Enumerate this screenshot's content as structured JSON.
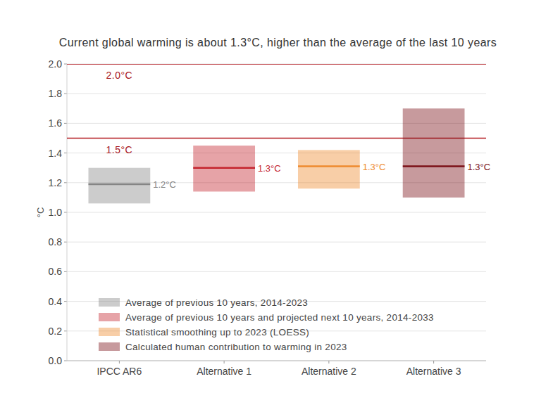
{
  "chart_data": {
    "type": "range_bar",
    "title": "Current global warming is about 1.3°C, higher than the average of the last 10 years",
    "y_label": "°C",
    "categories": [
      "IPCC AR6",
      "Alternative 1",
      "Alternative 2",
      "Alternative 3"
    ],
    "ylim": [
      0,
      2.0
    ],
    "yticks": [
      {
        "value": 0,
        "label": "0.0"
      },
      0.2,
      0.4,
      0.6,
      0.8,
      {
        "value": 1,
        "label": "1.0"
      },
      1.2,
      1.4,
      1.6,
      1.8,
      {
        "value": 2,
        "label": "2.0"
      }
    ],
    "grid": true,
    "legend": "bottom-left",
    "data_labels": true,
    "reference_lines": [
      {
        "value": 2.0,
        "label": "2.0°C"
      },
      {
        "value": 1.5,
        "label": "1.5°C"
      }
    ],
    "series": [
      {
        "name": "Average of previous 10 years, 2014-2023",
        "color": "#858585",
        "values": [
          1.19,
          null,
          null,
          null
        ],
        "low": [
          1.06,
          null,
          null,
          null
        ],
        "high": [
          1.3,
          null,
          null,
          null
        ],
        "value_labels": [
          "1.2°C",
          null,
          null,
          null
        ]
      },
      {
        "name": "Average of previous 10 years and projected next 10 years, 2014-2033",
        "color": "#c4242d",
        "values": [
          null,
          1.3,
          null,
          null
        ],
        "low": [
          null,
          1.14,
          null,
          null
        ],
        "high": [
          null,
          1.45,
          null,
          null
        ],
        "value_labels": [
          null,
          "1.3°C",
          null,
          null
        ]
      },
      {
        "name": "Statistical smoothing up to 2023 (LOESS)",
        "color": "#ee8a2e",
        "values": [
          null,
          null,
          1.31,
          null
        ],
        "low": [
          null,
          null,
          1.16,
          null
        ],
        "high": [
          null,
          null,
          1.42,
          null
        ],
        "value_labels": [
          null,
          null,
          "1.3°C",
          null
        ]
      },
      {
        "name": "Calculated human contribution to warming in 2023",
        "color": "#7a0f16",
        "values": [
          null,
          null,
          null,
          1.31
        ],
        "low": [
          null,
          null,
          null,
          1.1
        ],
        "high": [
          null,
          null,
          null,
          1.7
        ],
        "value_labels": [
          null,
          null,
          null,
          "1.3°C"
        ]
      }
    ]
  }
}
